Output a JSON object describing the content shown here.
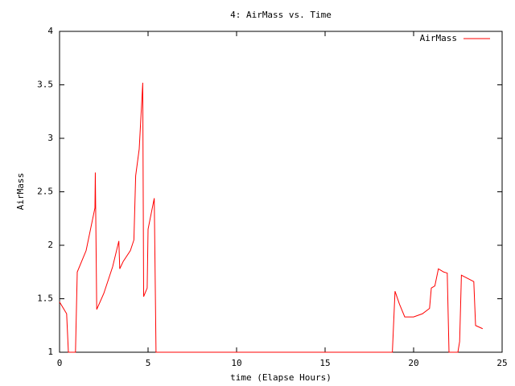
{
  "chart_data": {
    "type": "line",
    "title": "4: AirMass vs. Time",
    "x_label": "time (Elapse Hours)",
    "y_label": "AirMass",
    "x": [
      0,
      0.4,
      0.5,
      0.9,
      1.0,
      1.5,
      2.0,
      2.02,
      2.1,
      2.5,
      3.0,
      3.35,
      3.4,
      3.6,
      4.0,
      4.2,
      4.3,
      4.5,
      4.7,
      4.75,
      4.95,
      5.0,
      5.35,
      5.45,
      18.5,
      18.8,
      18.95,
      19.2,
      19.5,
      20.0,
      20.5,
      20.9,
      21.0,
      21.2,
      21.4,
      21.7,
      21.9,
      22.0,
      22.5,
      22.6,
      22.7,
      23.4,
      23.5,
      23.9
    ],
    "series": [
      {
        "name": "AirMass",
        "color": "#ff0000",
        "values": [
          1.47,
          1.36,
          1.0,
          1.0,
          1.75,
          1.95,
          2.35,
          2.68,
          1.4,
          1.55,
          1.8,
          2.04,
          1.78,
          1.85,
          1.95,
          2.05,
          2.65,
          2.9,
          3.52,
          1.52,
          1.6,
          2.15,
          2.44,
          1.0,
          1.0,
          1.0,
          1.57,
          1.45,
          1.33,
          1.33,
          1.36,
          1.41,
          1.6,
          1.62,
          1.78,
          1.75,
          1.74,
          1.0,
          1.0,
          1.1,
          1.72,
          1.66,
          1.25,
          1.22
        ]
      }
    ],
    "xlim": [
      0,
      25
    ],
    "xticks": [
      0,
      5,
      10,
      15,
      20,
      25
    ],
    "ylim": [
      1,
      4
    ],
    "yticks": [
      1,
      1.5,
      2,
      2.5,
      3,
      3.5,
      4
    ],
    "legend": "top-right"
  }
}
